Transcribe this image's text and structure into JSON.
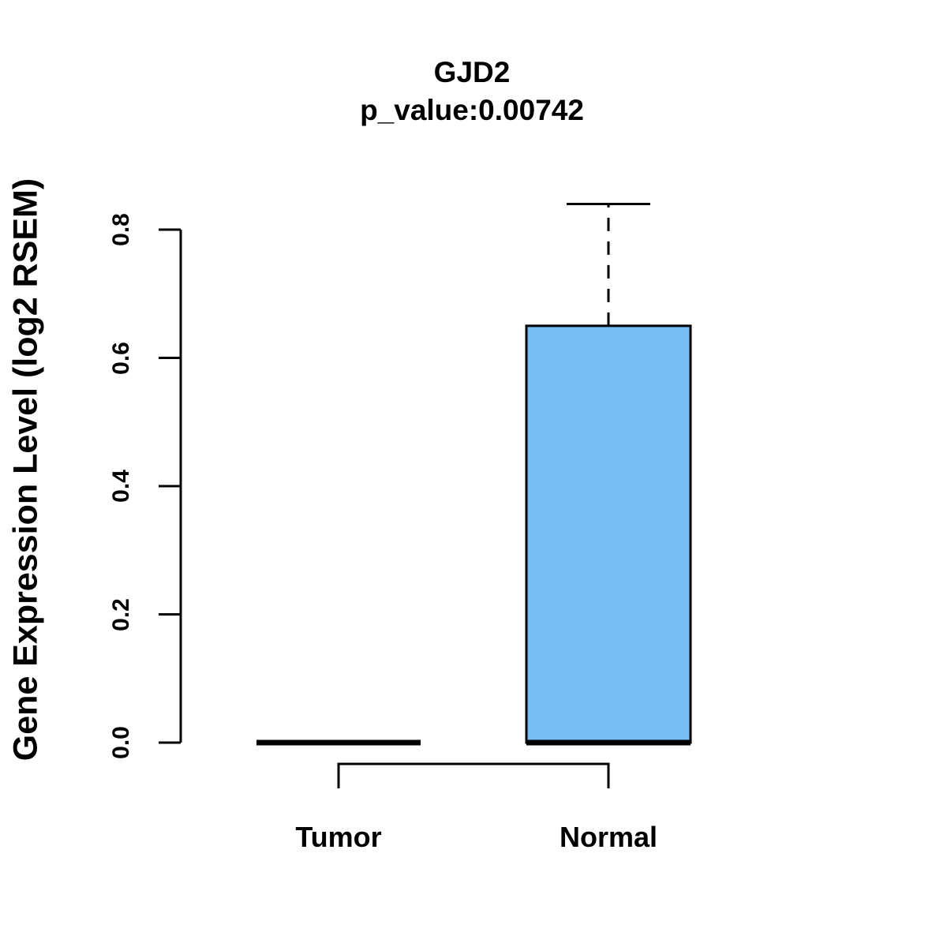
{
  "title": "GJD2",
  "subtitle": "p_value:0.00742",
  "chart_data": {
    "type": "boxplot",
    "title": "GJD2",
    "subtitle": "p_value:0.00742",
    "xlabel": "",
    "ylabel": "Gene Expression Level (log2 RSEM)",
    "categories": [
      "Tumor",
      "Normal"
    ],
    "y_ticks": [
      0.0,
      0.2,
      0.4,
      0.6,
      0.8
    ],
    "y_tick_labels": [
      "0.0",
      "0.2",
      "0.4",
      "0.6",
      "0.8"
    ],
    "ylim": [
      0.0,
      0.8
    ],
    "grid": false,
    "legend": false,
    "groups": [
      {
        "name": "Tumor",
        "whisker_low": 0.0,
        "q1": 0.0,
        "median": 0.0,
        "q3": 0.0,
        "whisker_high": 0.0
      },
      {
        "name": "Normal",
        "whisker_low": 0.0,
        "q1": 0.0,
        "median": 0.0,
        "q3": 0.65,
        "whisker_high": 0.84
      }
    ],
    "comparison_bracket": {
      "from": "Tumor",
      "to": "Normal"
    },
    "colors": {
      "box_fill": "#75BFF5",
      "line": "#000000",
      "background": "#FFFFFF"
    }
  }
}
